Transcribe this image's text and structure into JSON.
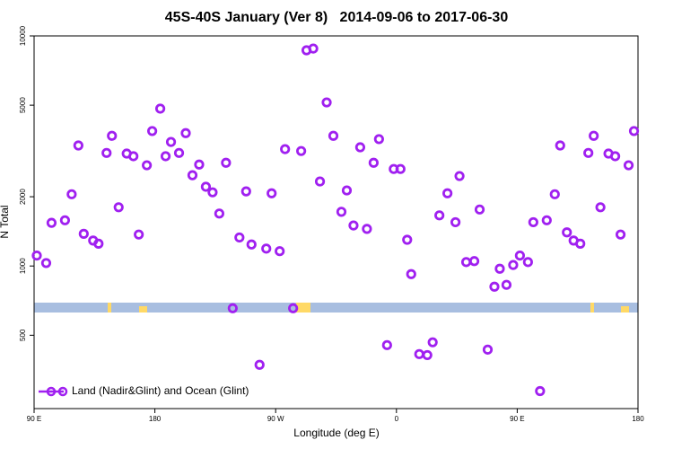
{
  "chart_data": {
    "type": "scatter",
    "title": "45S-40S January (Ver 8)   2014-09-06 to 2017-06-30",
    "x_label": "Longitude (deg E)",
    "y_label": "N Total",
    "xlim": [
      90,
      540
    ],
    "ylim": [
      240,
      10000
    ],
    "log_y": true,
    "xticks": [
      {
        "value": 90,
        "label": "90 E"
      },
      180,
      {
        "value": 270,
        "label": "90 W"
      },
      {
        "value": 360,
        "label": "0"
      },
      {
        "value": 450,
        "label": "90 E"
      },
      {
        "value": 540,
        "label": "180"
      }
    ],
    "yticks": [
      500,
      1000,
      2000,
      5000,
      10000
    ],
    "legend": "bottom-left",
    "series": [
      {
        "name": "Land (Nadir&Glint) and Ocean (Glint)",
        "color": "#a020f0",
        "x": [
          92,
          99,
          103,
          113,
          118,
          123,
          127,
          134,
          138,
          144,
          148,
          153,
          159,
          164,
          168,
          174,
          178,
          184,
          188,
          192,
          198,
          203,
          208,
          213,
          218,
          223,
          228,
          233,
          238,
          243,
          248,
          252,
          258,
          263,
          267,
          273,
          277,
          283,
          289,
          293,
          298,
          303,
          308,
          313,
          319,
          323,
          328,
          333,
          338,
          343,
          347,
          353,
          358,
          363,
          368,
          371,
          377,
          383,
          387,
          392,
          398,
          404,
          407,
          412,
          418,
          422,
          428,
          433,
          437,
          442,
          447,
          452,
          458,
          462,
          467,
          472,
          478,
          482,
          487,
          492,
          497,
          503,
          507,
          512,
          518,
          523,
          527,
          533,
          537
        ],
        "values": [
          1110,
          1030,
          1540,
          1580,
          2050,
          3340,
          1380,
          1290,
          1250,
          3100,
          3680,
          1800,
          3080,
          3000,
          1370,
          2740,
          3860,
          4830,
          3000,
          3460,
          3100,
          3780,
          2480,
          2760,
          2210,
          2090,
          1690,
          2810,
          655,
          1330,
          2110,
          1240,
          372,
          1190,
          2070,
          1160,
          3220,
          655,
          3160,
          8660,
          8810,
          2330,
          5140,
          3680,
          1720,
          2130,
          1500,
          3280,
          1450,
          2810,
          3560,
          453,
          2640,
          2640,
          1300,
          922,
          414,
          410,
          466,
          1660,
          2070,
          1550,
          2460,
          1040,
          1050,
          1760,
          433,
          813,
          973,
          828,
          1010,
          1110,
          1040,
          1550,
          286,
          1580,
          2050,
          3340,
          1400,
          1290,
          1250,
          3100,
          3680,
          1800,
          3080,
          3000,
          1370,
          2740,
          3860
        ]
      }
    ]
  }
}
